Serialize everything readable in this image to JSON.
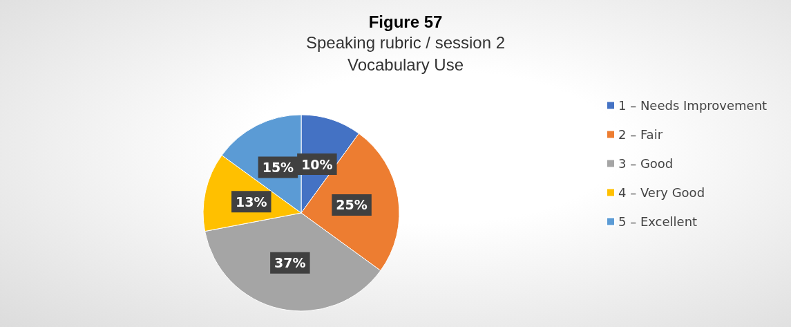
{
  "chart_data": {
    "type": "pie",
    "title": "Figure 57",
    "subtitle": "Speaking rubric / session 2\nVocabulary Use",
    "categories": [
      "1 – Needs Improvement",
      "2 – Fair",
      "3 – Good",
      "4 – Very Good",
      "5 – Excellent"
    ],
    "values": [
      10,
      25,
      37,
      13,
      15
    ],
    "colors": [
      "#4472c4",
      "#ed7d31",
      "#a5a5a5",
      "#ffc000",
      "#5b9bd5"
    ],
    "value_labels": [
      "10%",
      "25%",
      "37%",
      "13%",
      "15%"
    ],
    "legend": "right"
  }
}
